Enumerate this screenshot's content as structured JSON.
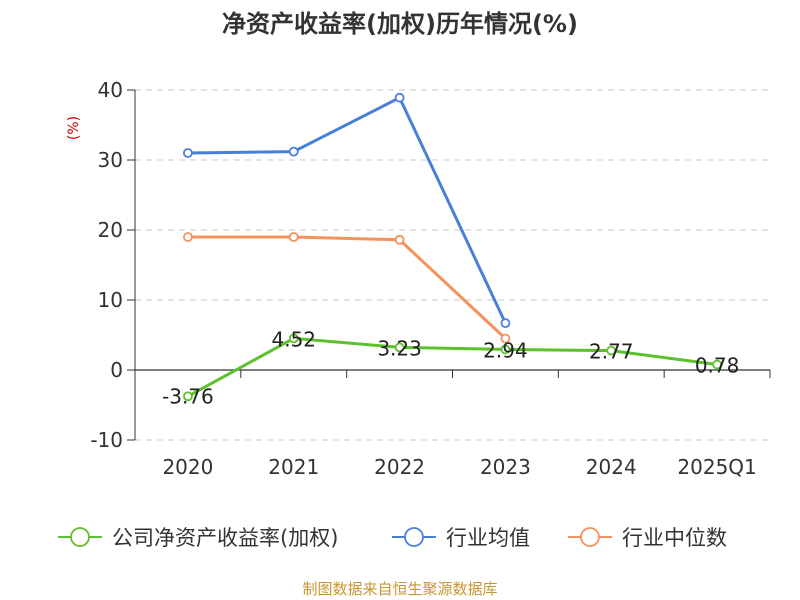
{
  "title": "净资产收益率(加权)历年情况(%)",
  "unit_label": "(%)",
  "source": "制图数据来自恒生聚源数据库",
  "colors": {
    "company": "#5cc12b",
    "industry_avg": "#4a7fd9",
    "industry_median": "#f5915a",
    "grid": "#c8c8c8",
    "axis": "#333333",
    "unit": "#d40000"
  },
  "chart_data": {
    "type": "line",
    "categories": [
      "2020",
      "2021",
      "2022",
      "2023",
      "2024",
      "2025Q1"
    ],
    "ylim": [
      -10,
      40
    ],
    "yticks": [
      "-10",
      "0",
      "10",
      "20",
      "30",
      "40"
    ],
    "ylabel": "(%)",
    "grid": true,
    "legend_position": "bottom",
    "series": [
      {
        "name": "公司净资产收益率(加权)",
        "color": "#5cc12b",
        "values": [
          -3.76,
          4.52,
          3.23,
          2.94,
          2.77,
          0.78
        ],
        "labels": [
          "-3.76",
          "4.52",
          "3.23",
          "2.94",
          "2.77",
          "0.78"
        ]
      },
      {
        "name": "行业均值",
        "color": "#4a7fd9",
        "values": [
          31.0,
          31.2,
          38.9,
          6.7,
          null,
          null
        ]
      },
      {
        "name": "行业中位数",
        "color": "#f5915a",
        "values": [
          19.0,
          19.0,
          18.6,
          4.5,
          null,
          null
        ]
      }
    ]
  }
}
